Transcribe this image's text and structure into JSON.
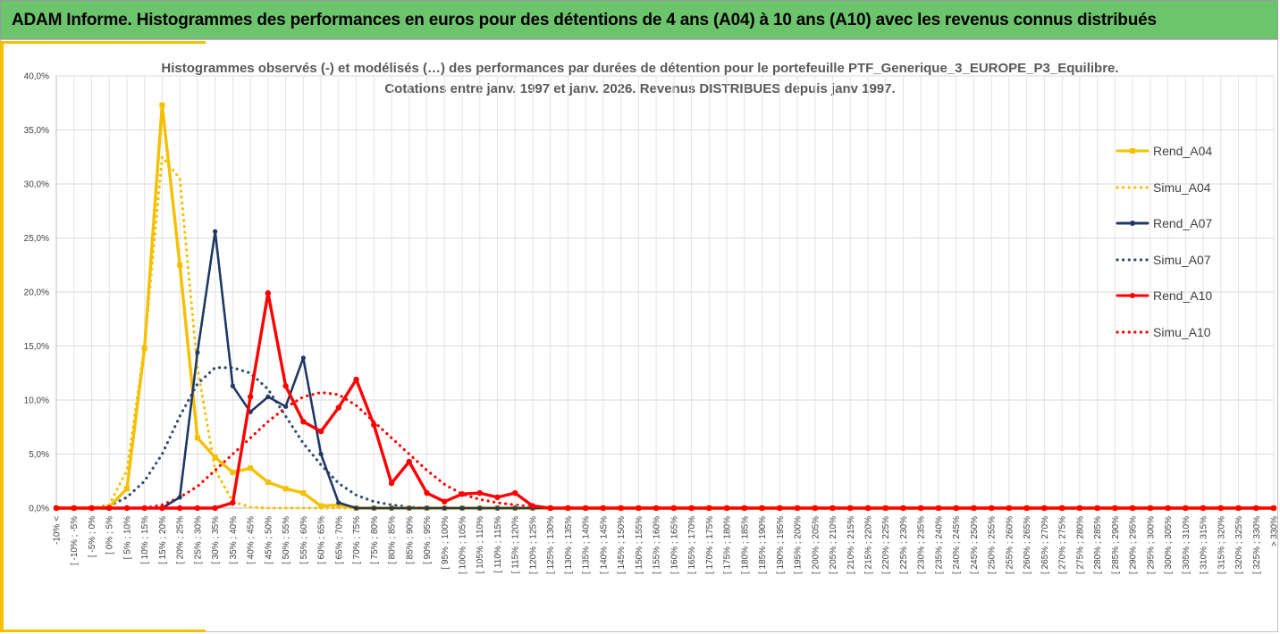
{
  "header": {
    "title": "ADAM Informe. Histogrammes des performances en euros pour des détentions de 4 ans (A04) à 10 ans (A10) avec les revenus connus distribués"
  },
  "chart_data": {
    "type": "line",
    "title_line1": "Histogrammes observés (-) et modélisés (…) des performances par durées de détention pour  le portefeuille PTF_Generique_3_EUROPE_P3_Equilibre.",
    "title_line2": "Cotations  entre janv. 1997 et janv. 2026. Revenus DISTRIBUES depuis janv 1997.",
    "ylim": [
      0,
      40
    ],
    "yticks": [
      "0,0%",
      "5,0%",
      "10,0%",
      "15,0%",
      "20,0%",
      "25,0%",
      "30,0%",
      "35,0%",
      "40,0%"
    ],
    "legend_position": "right",
    "categories": [
      "-10% <",
      "[ -10% ; -5%",
      "[ -5% ; 0%",
      "[ 0% ; 5%",
      "[ 5% ; 10%",
      "[ 10% ; 15%",
      "[ 15% ; 20%",
      "[ 20% ; 25%",
      "[ 25% ; 30%",
      "[ 30% ; 35%",
      "[ 35% ; 40%",
      "[ 40% ; 45%",
      "[ 45% ; 50%",
      "[ 50% ; 55%",
      "[ 55% ; 60%",
      "[ 60% ; 65%",
      "[ 65% ; 70%",
      "[ 70% ; 75%",
      "[ 75% ; 80%",
      "[ 80% ; 85%",
      "[ 85% ; 90%",
      "[ 90% ; 95%",
      "[ 95% ; 100%",
      "[ 100% ; 105%",
      "[ 105% ; 110%",
      "[ 110% ; 115%",
      "[ 115% ; 120%",
      "[ 120% ; 125%",
      "[ 125% ; 130%",
      "[ 130% ; 135%",
      "[ 135% ; 140%",
      "[ 140% ; 145%",
      "[ 145% ; 150%",
      "[ 150% ; 155%",
      "[ 155% ; 160%",
      "[ 160% ; 165%",
      "[ 165% ; 170%",
      "[ 170% ; 175%",
      "[ 175% ; 180%",
      "[ 180% ; 185%",
      "[ 185% ; 190%",
      "[ 190% ; 195%",
      "[ 195% ; 200%",
      "[ 200% ; 205%",
      "[ 205% ; 210%",
      "[ 210% ; 215%",
      "[ 215% ; 220%",
      "[ 220% ; 225%",
      "[ 225% ; 230%",
      "[ 230% ; 235%",
      "[ 235% ; 240%",
      "[ 240% ; 245%",
      "[ 245% ; 250%",
      "[ 250% ; 255%",
      "[ 255% ; 260%",
      "[ 260% ; 265%",
      "[ 265% ; 270%",
      "[ 270% ; 275%",
      "[ 275% ; 280%",
      "[ 280% ; 285%",
      "[ 285% ; 290%",
      "[ 290% ; 295%",
      "[ 295% ; 300%",
      "[ 300% ; 305%",
      "[ 305% ; 310%",
      "[ 310% ; 315%",
      "[ 315% ; 320%",
      "[ 320% ; 325%",
      "[ 325% ; 330%",
      "> 330%"
    ],
    "series": [
      {
        "name": "Rend_A04",
        "color": "#f5c000",
        "style": "solid",
        "markers": "square",
        "values": [
          0,
          0,
          0,
          0.1,
          1.8,
          14.8,
          37.3,
          22.5,
          6.5,
          4.7,
          3.3,
          3.7,
          2.4,
          1.8,
          1.4,
          0.2,
          0.3,
          0,
          0,
          0,
          0,
          0,
          0,
          0,
          0,
          0,
          0,
          0,
          0,
          0,
          0,
          0,
          0,
          0,
          0,
          0,
          0,
          0,
          0,
          0,
          0,
          0,
          0,
          0,
          0,
          0,
          0,
          0,
          0,
          0,
          0,
          0,
          0,
          0,
          0,
          0,
          0,
          0,
          0,
          0,
          0,
          0,
          0,
          0,
          0,
          0,
          0,
          0,
          0,
          0
        ]
      },
      {
        "name": "Simu_A04",
        "color": "#f5c000",
        "style": "dotted",
        "markers": "none",
        "values": [
          0,
          0,
          0,
          0.3,
          3.5,
          15,
          32.5,
          30.5,
          13,
          3.5,
          0.6,
          0.1,
          0,
          0,
          0,
          0,
          0,
          0,
          0,
          0,
          0,
          0,
          0,
          0,
          0,
          0,
          0,
          0,
          0,
          0,
          0,
          0,
          0,
          0,
          0,
          0,
          0,
          0,
          0,
          0,
          0,
          0,
          0,
          0,
          0,
          0,
          0,
          0,
          0,
          0,
          0,
          0,
          0,
          0,
          0,
          0,
          0,
          0,
          0,
          0,
          0,
          0,
          0,
          0,
          0,
          0,
          0,
          0,
          0,
          0
        ]
      },
      {
        "name": "Rend_A07",
        "color": "#1f3864",
        "style": "solid",
        "markers": "circle",
        "values": [
          0,
          0,
          0,
          0,
          0,
          0,
          0,
          1,
          14.4,
          25.6,
          11.3,
          8.9,
          10.3,
          9.4,
          13.9,
          5,
          0.5,
          0,
          0,
          0,
          0,
          0,
          0,
          0,
          0,
          0,
          0,
          0,
          0,
          0,
          0,
          0,
          0,
          0,
          0,
          0,
          0,
          0,
          0,
          0,
          0,
          0,
          0,
          0,
          0,
          0,
          0,
          0,
          0,
          0,
          0,
          0,
          0,
          0,
          0,
          0,
          0,
          0,
          0,
          0,
          0,
          0,
          0,
          0,
          0,
          0,
          0,
          0,
          0,
          0
        ]
      },
      {
        "name": "Simu_A07",
        "color": "#2e4d78",
        "style": "dotted",
        "markers": "none",
        "values": [
          0,
          0,
          0,
          0.2,
          1,
          2.5,
          5,
          8.5,
          11.5,
          13,
          13,
          12.5,
          11,
          8.5,
          6,
          4,
          2.3,
          1.2,
          0.6,
          0.3,
          0.1,
          0,
          0,
          0,
          0,
          0,
          0,
          0,
          0,
          0,
          0,
          0,
          0,
          0,
          0,
          0,
          0,
          0,
          0,
          0,
          0,
          0,
          0,
          0,
          0,
          0,
          0,
          0,
          0,
          0,
          0,
          0,
          0,
          0,
          0,
          0,
          0,
          0,
          0,
          0,
          0,
          0,
          0,
          0,
          0,
          0,
          0,
          0,
          0,
          0
        ]
      },
      {
        "name": "Rend_A10",
        "color": "#ff0000",
        "style": "solid",
        "markers": "circle",
        "values": [
          0,
          0,
          0,
          0,
          0,
          0,
          0,
          0,
          0,
          0,
          0.5,
          10.3,
          19.9,
          11.3,
          8,
          7.1,
          9.3,
          11.9,
          7.7,
          2.3,
          4.3,
          1.4,
          0.6,
          1.3,
          1.4,
          1,
          1.4,
          0.2,
          0,
          0,
          0,
          0,
          0,
          0,
          0,
          0,
          0,
          0,
          0,
          0,
          0,
          0,
          0,
          0,
          0,
          0,
          0,
          0,
          0,
          0,
          0,
          0,
          0,
          0,
          0,
          0,
          0,
          0,
          0,
          0,
          0,
          0,
          0,
          0,
          0,
          0,
          0,
          0,
          0,
          0
        ]
      },
      {
        "name": "Simu_A10",
        "color": "#ff0000",
        "style": "dotted",
        "markers": "none",
        "values": [
          0,
          0,
          0,
          0,
          0,
          0,
          0.3,
          1,
          2,
          3.5,
          5,
          6.5,
          8,
          9.3,
          10.3,
          10.7,
          10.5,
          9.5,
          8,
          6.5,
          5,
          3.5,
          2.2,
          1.3,
          0.8,
          0.5,
          0.3,
          0.1,
          0,
          0,
          0,
          0,
          0,
          0,
          0,
          0,
          0,
          0,
          0,
          0,
          0,
          0,
          0,
          0,
          0,
          0,
          0,
          0,
          0,
          0,
          0,
          0,
          0,
          0,
          0,
          0,
          0,
          0,
          0,
          0,
          0,
          0,
          0,
          0,
          0,
          0,
          0,
          0,
          0,
          0
        ]
      }
    ]
  }
}
